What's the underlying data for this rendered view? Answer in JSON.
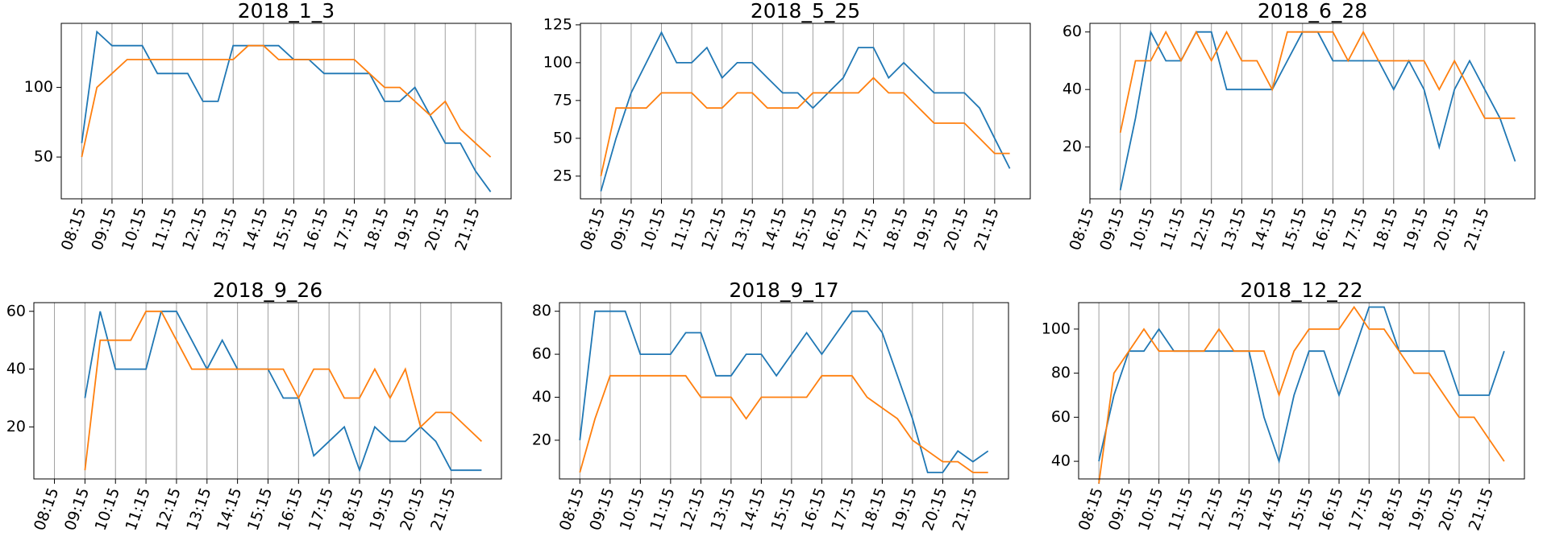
{
  "chart_data": [
    {
      "type": "line",
      "title": "2018_1_3",
      "grid": "x",
      "categories": [
        "08:15",
        null,
        "09:15",
        null,
        "10:15",
        null,
        "11:15",
        null,
        "12:15",
        null,
        "13:15",
        null,
        "14:15",
        null,
        "15:15",
        null,
        "16:15",
        null,
        "17:15",
        null,
        "18:15",
        null,
        "19:15",
        null,
        "20:15",
        null,
        "21:15",
        null
      ],
      "ylim": [
        20,
        146
      ],
      "yticks": [
        50,
        100
      ],
      "series": [
        {
          "color": "#1f77b4",
          "values": [
            60,
            140,
            130,
            130,
            130,
            110,
            110,
            110,
            90,
            90,
            130,
            130,
            130,
            130,
            120,
            120,
            110,
            110,
            110,
            110,
            90,
            90,
            100,
            80,
            60,
            60,
            40,
            25
          ]
        },
        {
          "color": "#ff7f0e",
          "values": [
            50,
            100,
            110,
            120,
            120,
            120,
            120,
            120,
            120,
            120,
            120,
            130,
            130,
            120,
            120,
            120,
            120,
            120,
            120,
            110,
            100,
            100,
            90,
            80,
            90,
            70,
            60,
            50
          ]
        }
      ]
    },
    {
      "type": "line",
      "title": "2018_5_25",
      "grid": "x",
      "categories": [
        "08:15",
        null,
        "09:15",
        null,
        "10:15",
        null,
        "11:15",
        null,
        "12:15",
        null,
        "13:15",
        null,
        "14:15",
        null,
        "15:15",
        null,
        "16:15",
        null,
        "17:15",
        null,
        "18:15",
        null,
        "19:15",
        null,
        "20:15",
        null,
        "21:15",
        null
      ],
      "ylim": [
        10,
        126
      ],
      "yticks": [
        25,
        50,
        75,
        100,
        125
      ],
      "series": [
        {
          "color": "#1f77b4",
          "values": [
            15,
            50,
            80,
            100,
            120,
            100,
            100,
            110,
            90,
            100,
            100,
            90,
            80,
            80,
            70,
            80,
            90,
            110,
            110,
            90,
            100,
            90,
            80,
            80,
            80,
            70,
            50,
            30
          ]
        },
        {
          "color": "#ff7f0e",
          "values": [
            25,
            70,
            70,
            70,
            80,
            80,
            80,
            70,
            70,
            80,
            80,
            70,
            70,
            70,
            80,
            80,
            80,
            80,
            90,
            80,
            80,
            70,
            60,
            60,
            60,
            50,
            40,
            40
          ]
        }
      ]
    },
    {
      "type": "line",
      "title": "2018_6_28",
      "grid": "x",
      "categories": [
        "08:15",
        null,
        "09:15",
        null,
        "10:15",
        null,
        "11:15",
        null,
        "12:15",
        null,
        "13:15",
        null,
        "14:15",
        null,
        "15:15",
        null,
        "16:15",
        null,
        "17:15",
        null,
        "18:15",
        null,
        "19:15",
        null,
        "20:15",
        null,
        "21:15",
        null,
        null
      ],
      "ylim": [
        2,
        63
      ],
      "yticks": [
        20,
        40,
        60
      ],
      "series": [
        {
          "color": "#1f77b4",
          "values": [
            null,
            null,
            5,
            30,
            60,
            50,
            50,
            60,
            60,
            40,
            40,
            40,
            40,
            50,
            60,
            60,
            50,
            50,
            50,
            50,
            40,
            50,
            40,
            20,
            40,
            50,
            40,
            30,
            15
          ]
        },
        {
          "color": "#ff7f0e",
          "values": [
            null,
            null,
            25,
            50,
            50,
            60,
            50,
            60,
            50,
            60,
            50,
            50,
            40,
            60,
            60,
            60,
            60,
            50,
            60,
            50,
            50,
            50,
            50,
            40,
            50,
            40,
            30,
            30,
            30
          ]
        }
      ]
    },
    {
      "type": "line",
      "title": "2018_9_26",
      "grid": "x",
      "categories": [
        "08:15",
        null,
        "09:15",
        null,
        "10:15",
        null,
        "11:15",
        null,
        "12:15",
        null,
        "13:15",
        null,
        "14:15",
        null,
        "15:15",
        null,
        "16:15",
        null,
        "17:15",
        null,
        "18:15",
        null,
        "19:15",
        null,
        "20:15",
        null,
        "21:15",
        null,
        null
      ],
      "ylim": [
        2,
        63
      ],
      "yticks": [
        20,
        40,
        60
      ],
      "series": [
        {
          "color": "#1f77b4",
          "values": [
            null,
            null,
            30,
            60,
            40,
            40,
            40,
            60,
            60,
            50,
            40,
            50,
            40,
            40,
            40,
            30,
            30,
            10,
            15,
            20,
            5,
            20,
            15,
            15,
            20,
            15,
            5,
            5,
            5
          ]
        },
        {
          "color": "#ff7f0e",
          "values": [
            null,
            null,
            5,
            50,
            50,
            50,
            60,
            60,
            50,
            40,
            40,
            40,
            40,
            40,
            40,
            40,
            30,
            40,
            40,
            30,
            30,
            40,
            30,
            40,
            20,
            25,
            25,
            20,
            15
          ]
        }
      ]
    },
    {
      "type": "line",
      "title": "2018_9_17",
      "grid": "x",
      "categories": [
        "08:15",
        null,
        "09:15",
        null,
        "10:15",
        null,
        "11:15",
        null,
        "12:15",
        null,
        "13:15",
        null,
        "14:15",
        null,
        "15:15",
        null,
        "16:15",
        null,
        "17:15",
        null,
        "18:15",
        null,
        "19:15",
        null,
        "20:15",
        null,
        "21:15",
        null
      ],
      "ylim": [
        2,
        84
      ],
      "yticks": [
        20,
        40,
        60,
        80
      ],
      "series": [
        {
          "color": "#1f77b4",
          "values": [
            20,
            80,
            80,
            80,
            60,
            60,
            60,
            70,
            70,
            50,
            50,
            60,
            60,
            50,
            60,
            70,
            60,
            70,
            80,
            80,
            70,
            50,
            30,
            5,
            5,
            15,
            10,
            15
          ]
        },
        {
          "color": "#ff7f0e",
          "values": [
            5,
            30,
            50,
            50,
            50,
            50,
            50,
            50,
            40,
            40,
            40,
            30,
            40,
            40,
            40,
            40,
            50,
            50,
            50,
            40,
            35,
            30,
            20,
            15,
            10,
            10,
            5,
            5
          ]
        }
      ]
    },
    {
      "type": "line",
      "title": "2018_12_22",
      "grid": "x",
      "categories": [
        "08:15",
        null,
        "09:15",
        null,
        "10:15",
        null,
        "11:15",
        null,
        "12:15",
        null,
        "13:15",
        null,
        "14:15",
        null,
        "15:15",
        null,
        "16:15",
        null,
        "17:15",
        null,
        "18:15",
        null,
        "19:15",
        null,
        "20:15",
        null,
        "21:15",
        null
      ],
      "ylim": [
        32,
        112
      ],
      "yticks": [
        40,
        60,
        80,
        100
      ],
      "series": [
        {
          "color": "#1f77b4",
          "values": [
            40,
            70,
            90,
            90,
            100,
            90,
            90,
            90,
            90,
            90,
            90,
            60,
            40,
            70,
            90,
            90,
            70,
            90,
            110,
            110,
            90,
            90,
            90,
            90,
            70,
            70,
            70,
            90
          ]
        },
        {
          "color": "#ff7f0e",
          "values": [
            30,
            80,
            90,
            100,
            90,
            90,
            90,
            90,
            100,
            90,
            90,
            90,
            70,
            90,
            100,
            100,
            100,
            110,
            100,
            100,
            90,
            80,
            80,
            70,
            60,
            60,
            50,
            40
          ]
        }
      ]
    }
  ]
}
